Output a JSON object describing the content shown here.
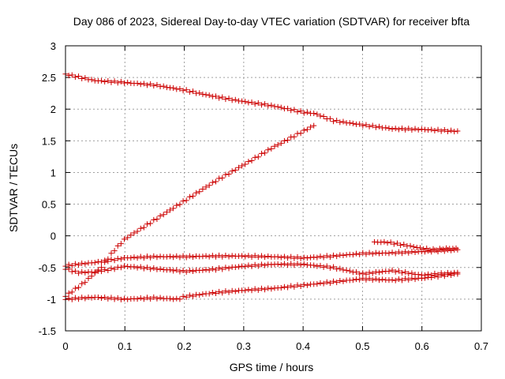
{
  "chart_data": {
    "type": "scatter",
    "title": "Day 086 of 2023, Sidereal Day-to-day VTEC variation (SDTVAR) for receiver bfta",
    "xlabel": "GPS time / hours",
    "ylabel": "SDTVAR / TECUs",
    "xlim": [
      0,
      0.7
    ],
    "ylim": [
      -1.5,
      3
    ],
    "xticks": [
      0,
      0.1,
      0.2,
      0.3,
      0.4,
      0.5,
      0.6,
      0.7
    ],
    "xtick_labels": [
      "0",
      "0.1",
      "0.2",
      "0.3",
      "0.4",
      "0.5",
      "0.6",
      "0.7"
    ],
    "yticks": [
      -1.5,
      -1,
      -0.5,
      0,
      0.5,
      1,
      1.5,
      2,
      2.5,
      3
    ],
    "ytick_labels": [
      "-1.5",
      "-1",
      "-0.5",
      "0",
      "0.5",
      "1",
      "1.5",
      "2",
      "2.5",
      "3"
    ],
    "grid": true,
    "marker": "+",
    "marker_color": "#cc0000",
    "series": [
      {
        "name": "track-top",
        "x": [
          0,
          0.05,
          0.1,
          0.15,
          0.2,
          0.25,
          0.3,
          0.35,
          0.4,
          0.42,
          0.45,
          0.5,
          0.55,
          0.6,
          0.66
        ],
        "y": [
          2.55,
          2.45,
          2.42,
          2.38,
          2.3,
          2.2,
          2.12,
          2.05,
          1.95,
          1.93,
          1.82,
          1.75,
          1.69,
          1.68,
          1.65
        ]
      },
      {
        "name": "track-rising",
        "x": [
          0,
          0.03,
          0.06,
          0.08,
          0.1,
          0.15,
          0.2,
          0.25,
          0.3,
          0.35,
          0.4,
          0.42
        ],
        "y": [
          -0.95,
          -0.75,
          -0.5,
          -0.25,
          -0.05,
          0.25,
          0.55,
          0.85,
          1.12,
          1.4,
          1.65,
          1.75
        ]
      },
      {
        "name": "track-upper-middle",
        "x": [
          0,
          0.05,
          0.08,
          0.1,
          0.15,
          0.2,
          0.25,
          0.3,
          0.35,
          0.4,
          0.45,
          0.5,
          0.55,
          0.6,
          0.66
        ],
        "y": [
          -0.47,
          -0.42,
          -0.38,
          -0.35,
          -0.33,
          -0.33,
          -0.32,
          -0.32,
          -0.33,
          -0.35,
          -0.32,
          -0.28,
          -0.27,
          -0.25,
          -0.22
        ]
      },
      {
        "name": "track-lower-middle",
        "x": [
          0,
          0.02,
          0.05,
          0.08,
          0.1,
          0.15,
          0.2,
          0.25,
          0.3,
          0.35,
          0.4,
          0.45,
          0.5,
          0.55,
          0.6,
          0.66
        ],
        "y": [
          -0.52,
          -0.58,
          -0.57,
          -0.52,
          -0.48,
          -0.52,
          -0.56,
          -0.53,
          -0.48,
          -0.45,
          -0.45,
          -0.5,
          -0.6,
          -0.55,
          -0.62,
          -0.58
        ]
      },
      {
        "name": "track-bottom",
        "x": [
          0,
          0.05,
          0.1,
          0.15,
          0.19,
          0.2,
          0.25,
          0.3,
          0.35,
          0.4,
          0.45,
          0.5,
          0.55,
          0.6,
          0.66
        ],
        "y": [
          -1.0,
          -0.97,
          -1.0,
          -0.98,
          -1.0,
          -0.96,
          -0.9,
          -0.86,
          -0.83,
          -0.78,
          -0.73,
          -0.68,
          -0.7,
          -0.67,
          -0.6
        ]
      },
      {
        "name": "track-short-segment",
        "x": [
          0.52,
          0.54,
          0.56,
          0.58,
          0.6,
          0.62,
          0.64,
          0.66
        ],
        "y": [
          -0.1,
          -0.1,
          -0.13,
          -0.16,
          -0.2,
          -0.22,
          -0.2,
          -0.2
        ]
      }
    ]
  }
}
